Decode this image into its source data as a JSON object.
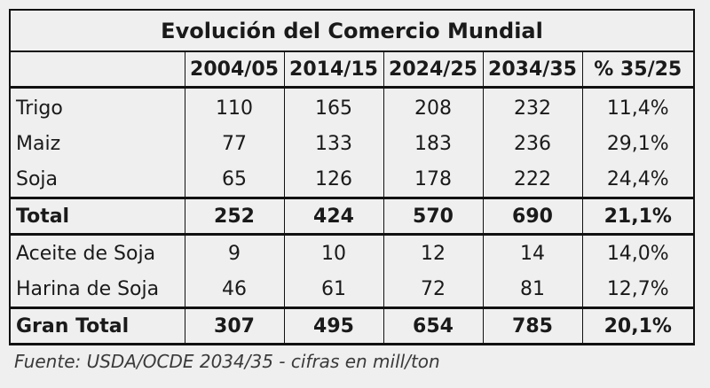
{
  "title": "Evolución del Comercio Mundial",
  "headers": [
    "",
    "2004/05",
    "2014/15",
    "2024/25",
    "2034/35",
    "% 35/25"
  ],
  "group1": [
    {
      "label": "Trigo",
      "values": [
        "110",
        "165",
        "208",
        "232",
        "11,4%"
      ]
    },
    {
      "label": "Maiz",
      "values": [
        "77",
        "133",
        "183",
        "236",
        "29,1%"
      ]
    },
    {
      "label": "Soja",
      "values": [
        "65",
        "126",
        "178",
        "222",
        "24,4%"
      ]
    }
  ],
  "total": {
    "label": "Total",
    "values": [
      "252",
      "424",
      "570",
      "690",
      "21,1%"
    ]
  },
  "group2": [
    {
      "label": "Aceite de Soja",
      "values": [
        "9",
        "10",
        "12",
        "14",
        "14,0%"
      ]
    },
    {
      "label": "Harina de Soja",
      "values": [
        "46",
        "61",
        "72",
        "81",
        "12,7%"
      ]
    }
  ],
  "grand_total": {
    "label": "Gran Total",
    "values": [
      "307",
      "495",
      "654",
      "785",
      "20,1%"
    ]
  },
  "source": "Fuente: USDA/OCDE 2034/35 - cifras en mill/ton"
}
